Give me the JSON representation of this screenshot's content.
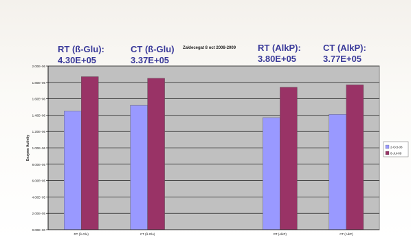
{
  "chart_data": {
    "type": "bar",
    "title": "Zaklecegat 8 oct 2008-2009",
    "ylabel": "Enzyme Activity",
    "xlabel": "",
    "categories": [
      "RT (ß-Glu)",
      "CT (ß-Glu)",
      "",
      "RT (AlkP)",
      "CT (AlkP)"
    ],
    "ylim": [
      0,
      2000000
    ],
    "y_ticks": [
      "0.00E+00",
      "2.00E+05",
      "4.00E+05",
      "6.00E+05",
      "8.00E+05",
      "1.00E+06",
      "1.20E+06",
      "1.40E+06",
      "1.60E+06",
      "1.80E+06",
      "2.00E+06"
    ],
    "series": [
      {
        "name": "2-Oct-08",
        "color": "#9999ff",
        "values": [
          1450000,
          1520000,
          null,
          1370000,
          1410000
        ]
      },
      {
        "name": "8-Jul-09",
        "color": "#993366",
        "values": [
          1870000,
          1850000,
          null,
          1740000,
          1770000
        ]
      }
    ],
    "grid": true,
    "legend_position": "right",
    "plot_background": "#c0c0c0",
    "annotations": [
      {
        "label": "RT (ß-Glu):",
        "value": "4.30E+05"
      },
      {
        "label": "CT (ß-Glu)",
        "value": "3.37E+05"
      },
      {
        "label": "RT (AlkP):",
        "value": "3.80E+05"
      },
      {
        "label": "CT (AlkP):",
        "value": "3.77E+05"
      }
    ]
  }
}
